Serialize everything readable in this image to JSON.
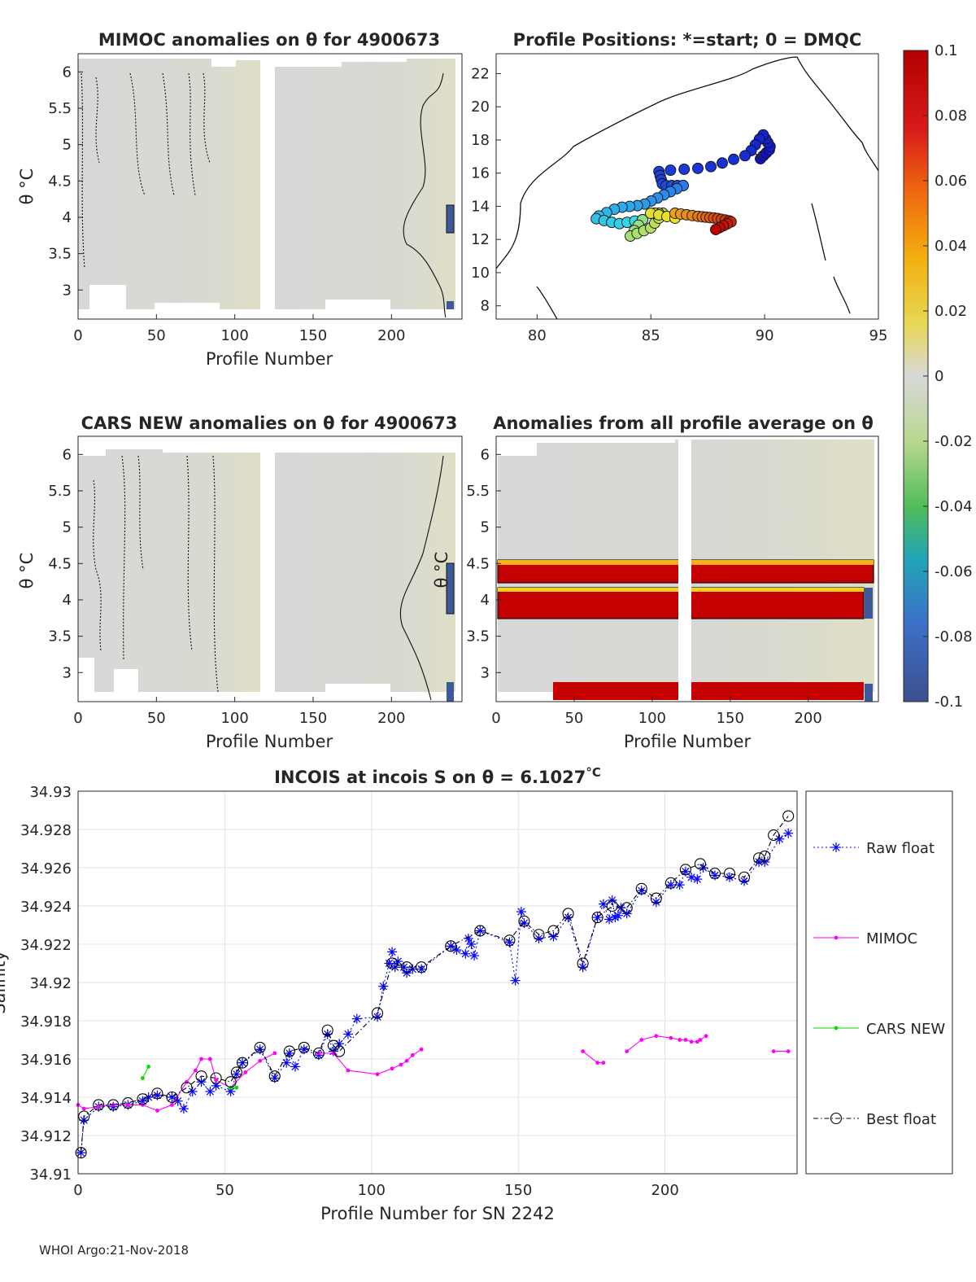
{
  "panels": {
    "mimoc": {
      "title": "MIMOC anomalies on θ  for 4900673",
      "ylabel": "θ °C",
      "xlabel": "Profile Number",
      "xticks": [
        "0",
        "50",
        "100",
        "150",
        "200"
      ],
      "yticks": [
        "3",
        "3.5",
        "4",
        "4.5",
        "5",
        "5.5",
        "6"
      ]
    },
    "positions": {
      "title": "Profile Positions: *=start; 0 = DMQC",
      "xticks": [
        "80",
        "85",
        "90",
        "95"
      ],
      "yticks": [
        "8",
        "10",
        "12",
        "14",
        "16",
        "18",
        "20",
        "22"
      ]
    },
    "cars": {
      "title": "CARS NEW anomalies on θ for 4900673",
      "ylabel": "θ °C",
      "xlabel": "Profile Number",
      "xticks": [
        "0",
        "50",
        "100",
        "150",
        "200"
      ],
      "yticks": [
        "3",
        "3.5",
        "4",
        "4.5",
        "5",
        "5.5",
        "6"
      ]
    },
    "allavg": {
      "title": "Anomalies from all profile average on θ",
      "xlabel": "Profile Number",
      "xticks": [
        "0",
        "50",
        "100",
        "150",
        "200"
      ],
      "yticks": [
        "3",
        "3.5",
        "4",
        "4.5",
        "5",
        "5.5",
        "6"
      ],
      "overlap_label": "θ °C"
    }
  },
  "colorbar": {
    "ticks": [
      "0.1",
      "0.08",
      "0.06",
      "0.04",
      "0.02",
      "0",
      "-0.02",
      "-0.04",
      "-0.06",
      "-0.08",
      "-0.1"
    ]
  },
  "footer": "WHOI Argo:21-Nov-2018",
  "chart_data": {
    "type": "line",
    "title": "INCOIS at incois S on θ = 6.1027",
    "title_unit": "°C",
    "xlabel": "Profile Number for SN 2242",
    "ylabel": "Salinity",
    "xlim": [
      0,
      245
    ],
    "ylim": [
      34.91,
      34.93
    ],
    "xticks": [
      "0",
      "50",
      "100",
      "150",
      "200"
    ],
    "yticks": [
      "34.91",
      "34.912",
      "34.914",
      "34.916",
      "34.918",
      "34.92",
      "34.922",
      "34.924",
      "34.926",
      "34.928",
      "34.93"
    ],
    "grid": true,
    "legend": [
      "Raw float",
      "MIMOC",
      "CARS NEW",
      "Best float"
    ],
    "series": [
      {
        "name": "Raw float",
        "color": "#0000ff",
        "marker": "asterisk",
        "linestyle": "dotted",
        "x": [
          1,
          2,
          7,
          12,
          17,
          22,
          24,
          27,
          32,
          34,
          36,
          39,
          42,
          45,
          47,
          52,
          54,
          56,
          62,
          67,
          71,
          72,
          74,
          77,
          82,
          85,
          87,
          89,
          92,
          95,
          102,
          104,
          106,
          107,
          108,
          109,
          111,
          112,
          114,
          117,
          127,
          129,
          132,
          133,
          134,
          135,
          137,
          147,
          149,
          151,
          152,
          157,
          162,
          167,
          172,
          177,
          179,
          181,
          182,
          183,
          184,
          185,
          187,
          192,
          197,
          202,
          205,
          207,
          209,
          211,
          213,
          217,
          222,
          227,
          232,
          234,
          239,
          242
        ],
        "y": [
          34.9111,
          34.9128,
          34.9135,
          34.9135,
          34.9136,
          34.9138,
          34.914,
          34.9141,
          34.914,
          34.9138,
          34.9134,
          34.9143,
          34.9148,
          34.9143,
          34.9146,
          34.9143,
          34.9152,
          34.9158,
          34.9165,
          34.915,
          34.9158,
          34.9163,
          34.9156,
          34.9165,
          34.9162,
          34.9173,
          34.9164,
          34.9168,
          34.9173,
          34.9181,
          34.9182,
          34.9198,
          34.921,
          34.9216,
          34.9208,
          34.9211,
          34.9208,
          34.9205,
          34.9207,
          34.9207,
          34.9219,
          34.9217,
          34.9215,
          34.9223,
          34.922,
          34.9214,
          34.9227,
          34.9221,
          34.9201,
          34.9237,
          34.9231,
          34.9223,
          34.9224,
          34.9234,
          34.9208,
          34.9234,
          34.9241,
          34.9233,
          34.9243,
          34.9234,
          34.9235,
          34.9239,
          34.9236,
          34.9248,
          34.9242,
          34.9251,
          34.9251,
          34.9258,
          34.9255,
          34.9254,
          34.926,
          34.9256,
          34.9255,
          34.9253,
          34.9263,
          34.9263,
          34.9275,
          34.9278
        ]
      },
      {
        "name": "MIMOC",
        "color": "#ff00ff",
        "marker": "dot",
        "linestyle": "solid",
        "segments": [
          {
            "x": [
              0,
              2,
              7,
              12,
              17,
              22,
              27,
              32,
              37,
              40,
              42,
              45,
              47,
              52,
              57,
              62,
              67
            ],
            "y": [
              34.9136,
              34.9134,
              34.9135,
              34.9136,
              34.9136,
              34.9136,
              34.9133,
              34.9136,
              34.9148,
              34.9154,
              34.916,
              34.916,
              34.9149,
              34.9145,
              34.9153,
              34.9159,
              34.9163
            ]
          },
          {
            "x": [
              82,
              87,
              92,
              102,
              107,
              110,
              112,
              114,
              117
            ],
            "y": [
              34.9163,
              34.9163,
              34.9154,
              34.9152,
              34.9155,
              34.9157,
              34.9159,
              34.9162,
              34.9165
            ]
          },
          {
            "x": [
              172,
              177,
              179
            ],
            "y": [
              34.9164,
              34.9158,
              34.9158
            ]
          },
          {
            "x": [
              187,
              192,
              197,
              202,
              205,
              207,
              209,
              211,
              212,
              214
            ],
            "y": [
              34.9164,
              34.917,
              34.9172,
              34.9171,
              34.917,
              34.917,
              34.9169,
              34.9169,
              34.917,
              34.9172
            ]
          },
          {
            "x": [
              237,
              242
            ],
            "y": [
              34.9164,
              34.9164
            ]
          }
        ]
      },
      {
        "name": "CARS NEW",
        "color": "#00dd00",
        "marker": "dot",
        "linestyle": "solid",
        "segments": [
          {
            "x": [
              22,
              24
            ],
            "y": [
              34.915,
              34.9156
            ]
          },
          {
            "x": [
              52,
              54
            ],
            "y": [
              34.9145,
              34.9145
            ]
          }
        ]
      },
      {
        "name": "Best float",
        "color": "#000000",
        "marker": "circle",
        "linestyle": "dashdot",
        "x": [
          1,
          2,
          7,
          12,
          17,
          22,
          27,
          32,
          37,
          42,
          47,
          52,
          54,
          56,
          62,
          67,
          72,
          77,
          82,
          85,
          87,
          89,
          102,
          107,
          112,
          117,
          127,
          137,
          147,
          152,
          157,
          162,
          167,
          172,
          177,
          182,
          187,
          192,
          197,
          202,
          207,
          212,
          217,
          222,
          227,
          232,
          234,
          237,
          242
        ],
        "y": [
          34.9111,
          34.913,
          34.9136,
          34.9136,
          34.9137,
          34.9139,
          34.9142,
          34.914,
          34.9145,
          34.9151,
          34.915,
          34.9148,
          34.9153,
          34.9158,
          34.9166,
          34.9151,
          34.9164,
          34.9166,
          34.9163,
          34.9175,
          34.9167,
          34.9164,
          34.9184,
          34.921,
          34.9208,
          34.9208,
          34.9219,
          34.9227,
          34.9222,
          34.9232,
          34.9225,
          34.9227,
          34.9236,
          34.921,
          34.9234,
          34.924,
          34.9239,
          34.9249,
          34.9244,
          34.9252,
          34.9259,
          34.9262,
          34.9257,
          34.9257,
          34.9255,
          34.9265,
          34.9266,
          34.9277,
          34.9287
        ]
      }
    ]
  }
}
